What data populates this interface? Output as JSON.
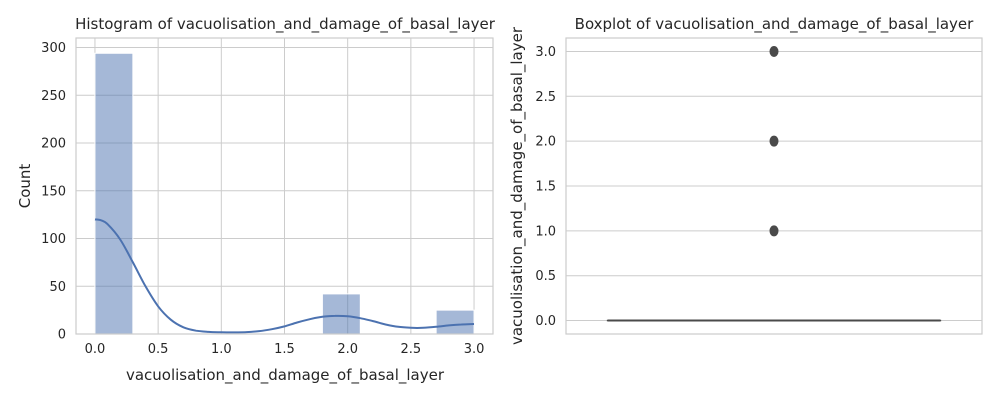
{
  "chart_data": [
    {
      "type": "bar",
      "subtype": "histogram",
      "title": "Histogram of vacuolisation_and_damage_of_basal_layer",
      "xlabel": "vacuolisation_and_damage_of_basal_layer",
      "ylabel": "Count",
      "xlim": [
        -0.15,
        3.15
      ],
      "ylim": [
        0,
        310
      ],
      "xticks": [
        "0.0",
        "0.5",
        "1.0",
        "1.5",
        "2.0",
        "2.5",
        "3.0"
      ],
      "yticks": [
        "0",
        "50",
        "100",
        "150",
        "200",
        "250",
        "300"
      ],
      "bins": [
        {
          "start": 0.0,
          "end": 0.3,
          "count": 294
        },
        {
          "start": 0.3,
          "end": 0.6,
          "count": 0
        },
        {
          "start": 0.6,
          "end": 0.9,
          "count": 0
        },
        {
          "start": 0.9,
          "end": 1.2,
          "count": 0
        },
        {
          "start": 1.2,
          "end": 1.5,
          "count": 0
        },
        {
          "start": 1.5,
          "end": 1.8,
          "count": 0
        },
        {
          "start": 1.8,
          "end": 2.1,
          "count": 42
        },
        {
          "start": 2.1,
          "end": 2.4,
          "count": 0
        },
        {
          "start": 2.4,
          "end": 2.7,
          "count": 0
        },
        {
          "start": 2.7,
          "end": 3.0,
          "count": 25
        }
      ],
      "kde": {
        "x": [
          0.0,
          0.05,
          0.1,
          0.2,
          0.3,
          0.4,
          0.5,
          0.6,
          0.7,
          0.8,
          0.9,
          1.0,
          1.1,
          1.2,
          1.3,
          1.4,
          1.5,
          1.6,
          1.7,
          1.8,
          1.9,
          2.0,
          2.1,
          2.2,
          2.3,
          2.4,
          2.5,
          2.6,
          2.7,
          2.8,
          2.9,
          3.0
        ],
        "y": [
          120,
          119,
          115,
          99,
          75,
          50,
          29,
          15,
          7,
          3.5,
          2.2,
          1.8,
          1.7,
          2,
          3,
          5,
          8,
          12,
          15.5,
          18,
          19,
          18.5,
          16.5,
          13.5,
          10,
          7.5,
          6.5,
          6.5,
          7.5,
          9,
          10,
          10.5
        ]
      },
      "colors": {
        "bar": "#4c72b0",
        "line": "#4c72b0"
      },
      "grid": true
    },
    {
      "type": "boxplot",
      "title": "Boxplot of vacuolisation_and_damage_of_basal_layer",
      "ylabel": "vacuolisation_and_damage_of_basal_layer",
      "ylim": [
        -0.15,
        3.15
      ],
      "yticks": [
        "0.0",
        "0.5",
        "1.0",
        "1.5",
        "2.0",
        "2.5",
        "3.0"
      ],
      "box": {
        "q1": 0,
        "median": 0,
        "q3": 0,
        "whisker_low": 0,
        "whisker_high": 0
      },
      "outliers": [
        1.0,
        2.0,
        3.0
      ],
      "colors": {
        "box": "#4c72b0",
        "line": "#4a4a4a"
      },
      "grid": true
    }
  ]
}
